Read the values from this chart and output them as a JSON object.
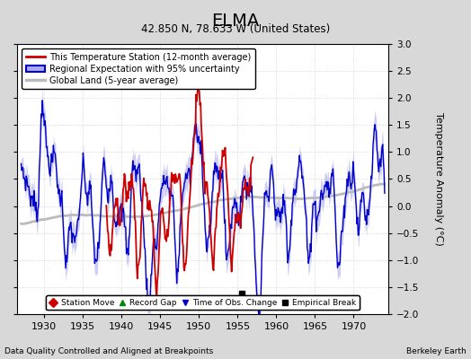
{
  "title": "ELMA",
  "subtitle": "42.850 N, 78.633 W (United States)",
  "ylabel": "Temperature Anomaly (°C)",
  "xlabel_left": "Data Quality Controlled and Aligned at Breakpoints",
  "xlabel_right": "Berkeley Earth",
  "xlim": [
    1926.5,
    1974.5
  ],
  "ylim": [
    -2.0,
    3.0
  ],
  "yticks": [
    -2,
    -1.5,
    -1,
    -0.5,
    0,
    0.5,
    1,
    1.5,
    2,
    2.5,
    3
  ],
  "xticks": [
    1930,
    1935,
    1940,
    1945,
    1950,
    1955,
    1960,
    1965,
    1970
  ],
  "bg_color": "#d8d8d8",
  "plot_bg_color": "#ffffff",
  "grid_color": "#cccccc",
  "station_color": "#cc0000",
  "regional_color": "#0000cc",
  "regional_fill_color": "#aaaaee",
  "global_color": "#bbbbbb",
  "empirical_break_x": 1955.5,
  "empirical_break_y": -1.62,
  "legend1_items": [
    {
      "label": "This Temperature Station (12-month average)",
      "color": "#cc0000",
      "lw": 2
    },
    {
      "label": "Regional Expectation with 95% uncertainty",
      "color": "#0000cc",
      "fill": "#aaaaee"
    },
    {
      "label": "Global Land (5-year average)",
      "color": "#bbbbbb",
      "lw": 2
    }
  ],
  "marker_legend": [
    {
      "label": "Station Move",
      "color": "#cc0000",
      "marker": "D"
    },
    {
      "label": "Record Gap",
      "color": "#008800",
      "marker": "^"
    },
    {
      "label": "Time of Obs. Change",
      "color": "#0000cc",
      "marker": "v"
    },
    {
      "label": "Empirical Break",
      "color": "black",
      "marker": "s"
    }
  ]
}
